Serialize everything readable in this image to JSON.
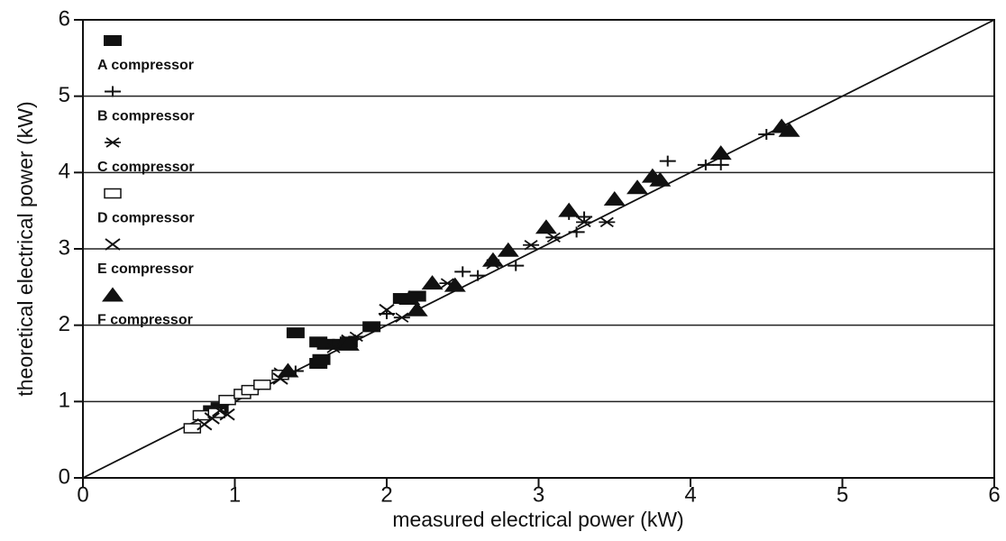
{
  "chart_data": {
    "type": "scatter",
    "x_label": "measured electrical power (kW)",
    "y_label": "theoretical electrical power (kW)",
    "xlim": [
      0,
      6
    ],
    "ylim": [
      0,
      6
    ],
    "xticks": [
      0,
      1,
      2,
      3,
      4,
      5,
      6
    ],
    "yticks": [
      0,
      1,
      2,
      3,
      4,
      5,
      6
    ],
    "grid": true,
    "legend": "upper left",
    "reference_line": {
      "x": [
        0,
        6
      ],
      "y": [
        0,
        6
      ]
    },
    "series": [
      {
        "name": "A compressor",
        "marker": "filled-square",
        "color": "#111111",
        "x": [
          1.4,
          1.55,
          1.6,
          1.55,
          1.57,
          1.7,
          1.75,
          0.9,
          0.85,
          1.9,
          2.1,
          2.2
        ],
        "y": [
          1.9,
          1.78,
          1.75,
          1.5,
          1.55,
          1.75,
          1.78,
          0.92,
          0.88,
          1.98,
          2.35,
          2.38
        ]
      },
      {
        "name": "B compressor",
        "marker": "plus",
        "color": "#111111",
        "x": [
          4.5,
          4.1,
          3.85,
          3.2,
          3.3,
          2.85,
          2.5,
          2.6,
          2.0,
          1.4,
          3.25,
          4.2
        ],
        "y": [
          4.5,
          4.1,
          4.15,
          3.45,
          3.42,
          2.78,
          2.7,
          2.65,
          2.15,
          1.4,
          3.22,
          4.1
        ]
      },
      {
        "name": "C compressor",
        "marker": "asterisk",
        "color": "#111111",
        "x": [
          3.45,
          3.3,
          3.1,
          2.95,
          2.7,
          2.4,
          1.8,
          1.65,
          1.3,
          2.1
        ],
        "y": [
          3.35,
          3.35,
          3.15,
          3.05,
          2.8,
          2.55,
          1.85,
          1.7,
          1.38,
          2.1
        ]
      },
      {
        "name": "D compressor",
        "marker": "open-square",
        "color": "#111111",
        "x": [
          0.72,
          0.78,
          0.95,
          1.05,
          1.1,
          1.18,
          1.3,
          0.88
        ],
        "y": [
          0.65,
          0.82,
          1.02,
          1.1,
          1.15,
          1.22,
          1.35,
          0.85
        ]
      },
      {
        "name": "E compressor",
        "marker": "cross",
        "color": "#111111",
        "x": [
          0.8,
          0.85,
          0.95,
          0.9,
          1.3,
          2.0,
          1.75
        ],
        "y": [
          0.7,
          0.78,
          0.83,
          0.88,
          1.3,
          2.2,
          1.8
        ]
      },
      {
        "name": "F compressor",
        "marker": "triangle",
        "color": "#111111",
        "x": [
          4.6,
          4.65,
          4.2,
          3.8,
          3.75,
          3.65,
          3.5,
          3.2,
          3.05,
          2.8,
          2.7,
          2.3,
          2.45,
          2.2,
          1.75,
          1.35,
          2.15
        ],
        "y": [
          4.6,
          4.55,
          4.25,
          3.9,
          3.95,
          3.8,
          3.65,
          3.5,
          3.28,
          2.98,
          2.85,
          2.55,
          2.52,
          2.2,
          1.75,
          1.4,
          2.35
        ]
      }
    ]
  }
}
